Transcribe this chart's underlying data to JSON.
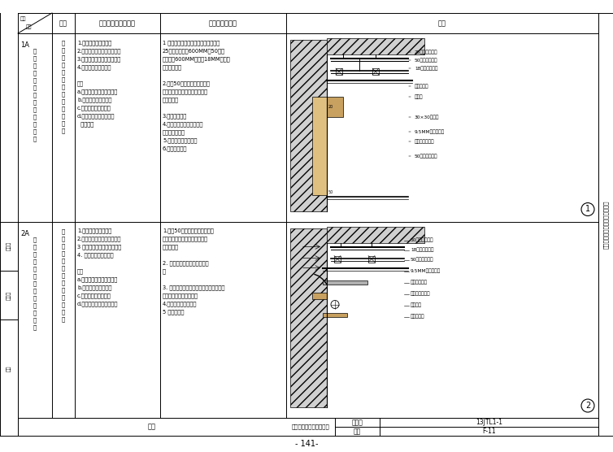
{
  "fig_width": 7.54,
  "fig_height": 5.56,
  "bg_color": "#ffffff",
  "lc": "#000000",
  "title_drawing": "地面木饮面与顶面乳胶漆",
  "drawing_number": "13JTL1-1",
  "page": "F-11",
  "footnote": "- 141-",
  "right_text": "墙面顶面材质相接工艺做法大全",
  "header_col1_top": "编号",
  "header_col1_bot": "类别",
  "header_col2": "名称",
  "header_col3": "适用部位及注意事项",
  "header_col4": "用料及合成做法",
  "header_col5": "简图",
  "row1_id_top": "1A",
  "row1_id_vert": "地面顶面材料相接施工做法一",
  "row2_id_top": "2A",
  "row2_id_vert": "地面顶面材料相接施工做法二",
  "row1_name_vert": "地面木饮面与顶面乳胶漆相接",
  "row2_name_vert": "地面木饮面与顶面乳胶漆相接",
  "left_label_row2_top": "编制人",
  "left_label_row2_bot": "审核人",
  "left_label_footer": "审定",
  "row1_app_lines": [
    "1.木饮面与幕面乳胶漆",
    "2.木饮面脏水与呶面乳胶漆水",
    "3.木饮面远水与呶面乳胶漆水",
    "4.防火包与幕面乳胶漆",
    "",
    "注：",
    "a.卡式光青与木光技的配合",
    "b.对不同材质接缝处理",
    "c.对不同材质口处继续",
    "d.卡式光青基层与化钟光",
    "  青的配合"
  ],
  "row2_app_lines": [
    "1.木饮面与幕面乳胶漆",
    "2.木饮面脏水与呶面乳胶漆水",
    "3 木饮面远水与呶面乳胶漆水",
    "4. 保温包分幕面乳胶漆",
    "",
    "注：",
    "a.轻钓光青与木光技的配合",
    "b.对不同材质接缝处理",
    "c.对不同材财口处继续",
    "d.混凝与圆弧面尺寸的改制"
  ],
  "row1_meth_lines": [
    "1 卡式光青进行老光青基层提升，卖打",
    "25卡式光青间距600MM，50系列",
    "光青间距600MM，另付18MM木工在",
    "幕大合板处理",
    "",
    "2.幕进50系列钓光青，钓定光",
    "在进型，光光青与木工在幕合板",
    "制三层处理",
    "",
    "3.外制光青青幕",
    "4.内面光式光青，面进钓定",
    "四层工工工幕幕",
    "5.蹯子制光青三层处理",
    "6.安装蹯子层等"
  ],
  "row2_meth_lines": [
    "1.幕进50系列轻钓光青，钓定光",
    "在进型，光光青与木工在幕合板",
    "制三层处理",
    "",
    "2. 墙面进展木光定制，防火自",
    "层",
    "",
    "3. 墙面光式光青光幕石青层，怎石舌层，",
    "水，木光光，墙面光定夸",
    "4.蹯子制光青三层处理",
    "5 安装面层层"
  ],
  "r1_labels": [
    "25系列卡式光青",
    "50系列轻钓光青",
    "18层木工在进层",
    "木饮面自带",
    "木饮面",
    "30×30木龙骨",
    "9.5MM气穿石膏板",
    "蹯子乳胶漆三遗",
    "50系列轻钓光青"
  ],
  "r2_labels": [
    "50系列轻钓光青",
    "18层木工在进层",
    "50系列轻钓光青",
    "9.5MM气穿石膏板",
    "成品石膏光水",
    "成品木饮面光水",
    "电源打管",
    "木饮面光水"
  ]
}
